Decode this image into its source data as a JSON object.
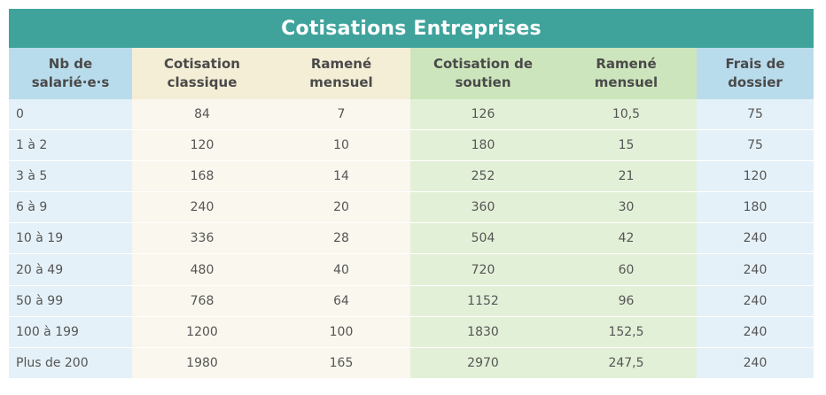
{
  "title": "Cotisations Entreprises",
  "colors": {
    "title_bg": "#3fa39c",
    "blue_header": "#b9dcec",
    "beige_header": "#f4eed6",
    "green_header": "#cde5bc",
    "blue_cell": "#e5f1f8",
    "beige_cell": "#faf7ee",
    "green_cell": "#e3f0d8"
  },
  "table": {
    "headers": [
      [
        "Nb de",
        "salarié·e·s"
      ],
      [
        "Cotisation",
        "classique"
      ],
      [
        "Ramené",
        "mensuel"
      ],
      [
        "Cotisation de",
        "soutien"
      ],
      [
        "Ramené",
        "mensuel"
      ],
      [
        "Frais de",
        "dossier"
      ]
    ],
    "rows": [
      [
        "0",
        "84",
        "7",
        "126",
        "10,5",
        "75"
      ],
      [
        "1 à 2",
        "120",
        "10",
        "180",
        "15",
        "75"
      ],
      [
        "3 à 5",
        "168",
        "14",
        "252",
        "21",
        "120"
      ],
      [
        "6 à 9",
        "240",
        "20",
        "360",
        "30",
        "180"
      ],
      [
        "10 à 19",
        "336",
        "28",
        "504",
        "42",
        "240"
      ],
      [
        "20 à 49",
        "480",
        "40",
        "720",
        "60",
        "240"
      ],
      [
        "50 à 99",
        "768",
        "64",
        "1152",
        "96",
        "240"
      ],
      [
        "100 à 199",
        "1200",
        "100",
        "1830",
        "152,5",
        "240"
      ],
      [
        "Plus de 200",
        "1980",
        "165",
        "2970",
        "247,5",
        "240"
      ]
    ]
  }
}
